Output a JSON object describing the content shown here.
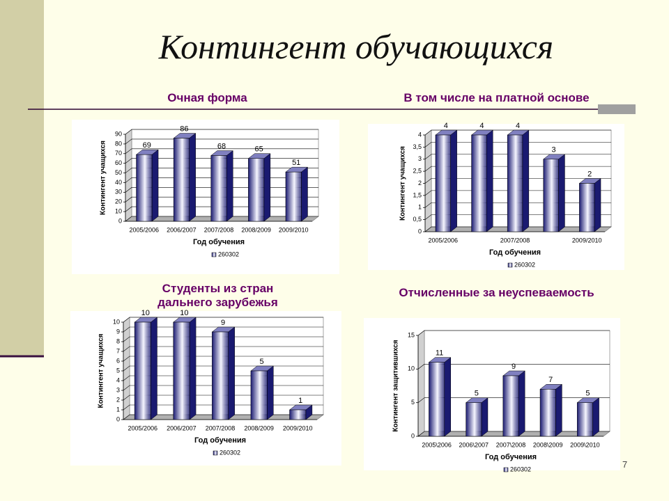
{
  "title": "Контингент обучающихся",
  "page_number": 7,
  "chart_data": [
    {
      "type": "bar",
      "title": "Очная форма",
      "xlabel": "Год обучения",
      "ylabel": "Контингент учащихся",
      "categories": [
        "2005/2006",
        "2006/2007",
        "2007/2008",
        "2008/2009",
        "2009/2010"
      ],
      "series": [
        {
          "name": "260302",
          "color": "#1a1a70",
          "values": [
            69,
            86,
            68,
            65,
            51
          ]
        }
      ],
      "ylim": [
        0,
        90
      ],
      "yticks": [
        0,
        10,
        20,
        30,
        40,
        50,
        60,
        70,
        80,
        90
      ],
      "grid": true
    },
    {
      "type": "bar",
      "title": "В том числе на платной основе",
      "xlabel": "Год обучения",
      "ylabel": "Контингент учащихся",
      "categories": [
        "2005/2006",
        null,
        "2007/2008",
        null,
        "2009/2010"
      ],
      "series": [
        {
          "name": "260302",
          "color": "#1a1a70",
          "values": [
            4,
            4,
            4,
            3,
            2
          ]
        }
      ],
      "ylim": [
        0,
        4
      ],
      "yticks": [
        0,
        {
          "value": 0.5,
          "label": "0,5"
        },
        1,
        {
          "value": 1.5,
          "label": "1,5"
        },
        2,
        {
          "value": 2.5,
          "label": "2,5"
        },
        3,
        {
          "value": 3.5,
          "label": "3,5"
        },
        4
      ],
      "grid": true
    },
    {
      "type": "bar",
      "title": "Студенты из стран дальнего зарубежья",
      "xlabel": "Год обучения",
      "ylabel": "Контингент учащихся",
      "categories": [
        "2005/2006",
        "2006/2007",
        "2007/2008",
        "2008/2009",
        "2009/2010"
      ],
      "series": [
        {
          "name": "260302",
          "color": "#1a1a70",
          "values": [
            10,
            10,
            9,
            5,
            1
          ]
        }
      ],
      "ylim": [
        0,
        10
      ],
      "yticks": [
        0,
        1,
        2,
        3,
        4,
        5,
        6,
        7,
        8,
        9,
        10
      ],
      "grid": true
    },
    {
      "type": "bar",
      "title": "Отчисленные за неуспеваемость",
      "xlabel": "Год обучения",
      "ylabel": "Контингент защитившихся",
      "categories": [
        "2005\\2006",
        "2006\\2007",
        "2007\\2008",
        "2008\\2009",
        "2009\\2010"
      ],
      "series": [
        {
          "name": "260302",
          "color": "#1a1a70",
          "values": [
            11,
            5,
            9,
            7,
            5
          ]
        }
      ],
      "ylim": [
        0,
        15
      ],
      "yticks": [
        0,
        5,
        10,
        15
      ],
      "grid": true
    }
  ]
}
